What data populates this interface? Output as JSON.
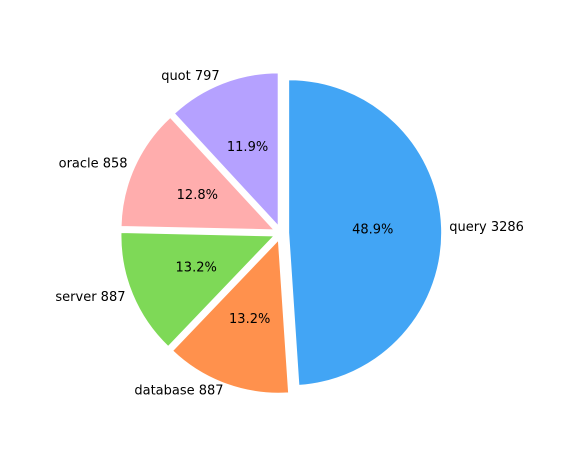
{
  "chart_data": {
    "type": "pie",
    "labels": [
      "query 3286",
      "database 887",
      "server 887",
      "oracle 858",
      "quot 797"
    ],
    "names": [
      "query",
      "database",
      "server",
      "oracle",
      "quot"
    ],
    "values": [
      3286,
      887,
      887,
      858,
      797
    ],
    "percent_labels": [
      "48.9%",
      "13.2%",
      "13.2%",
      "12.8%",
      "11.9%"
    ],
    "colors": [
      "#42a5f5",
      "#ff914d",
      "#7ed957",
      "#ffadad",
      "#b5a1ff"
    ],
    "start_angle_deg": 90,
    "direction": "clockwise",
    "explode": "all slices slightly separated"
  }
}
